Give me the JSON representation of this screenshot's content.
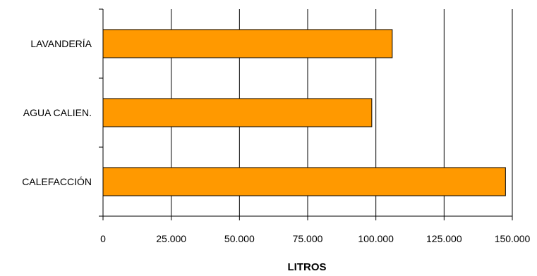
{
  "chart_data": {
    "type": "bar",
    "orientation": "horizontal",
    "categories": [
      "LAVANDERÍA",
      "AGUA CALIEN.",
      "CALEFACCIÓN"
    ],
    "values": [
      106000,
      98500,
      147500
    ],
    "xlabel": "LITROS",
    "ylabel": "",
    "xlim": [
      0,
      150000
    ],
    "x_ticks": [
      0,
      25000,
      50000,
      75000,
      100000,
      125000,
      150000
    ],
    "x_tick_labels": [
      "0",
      "25.000",
      "50.000",
      "75.000",
      "100.000",
      "125.000",
      "150.000"
    ],
    "grid": "vertical",
    "legend": "none",
    "colors": {
      "bar_fill": "#ff9900",
      "bar_stroke": "#000000",
      "grid": "#000000",
      "axis": "#000000"
    }
  }
}
